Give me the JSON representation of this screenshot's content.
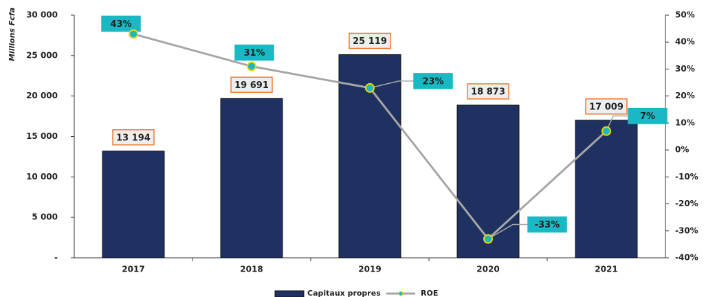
{
  "chart_data": {
    "type": "bar-line",
    "y_axis_label": "Millions Fcfa",
    "categories": [
      "2017",
      "2018",
      "2019",
      "2020",
      "2021"
    ],
    "series": [
      {
        "name": "Capitaux propres",
        "type": "bar",
        "color": "#1f3160",
        "values": [
          13194,
          19691,
          25119,
          18873,
          17009
        ],
        "value_labels": [
          "13 194",
          "19 691",
          "25 119",
          "18 873",
          "17 009"
        ]
      },
      {
        "name": "ROE",
        "type": "line",
        "axis": "y2",
        "color": "#a6a6a6",
        "values": [
          43,
          31,
          23,
          -33,
          7
        ],
        "value_labels": [
          "43%",
          "31%",
          "23%",
          "-33%",
          "7%"
        ]
      }
    ],
    "ylim": [
      0,
      30000
    ],
    "yticks": [
      {
        "value": 0,
        "label": "-"
      },
      {
        "value": 5000,
        "label": "5 000"
      },
      {
        "value": 10000,
        "label": "10 000"
      },
      {
        "value": 15000,
        "label": "15 000"
      },
      {
        "value": 20000,
        "label": "20 000"
      },
      {
        "value": 25000,
        "label": "25 000"
      },
      {
        "value": 30000,
        "label": "30 000"
      }
    ],
    "y2lim": [
      -40,
      50
    ],
    "y2ticks": [
      {
        "value": -40,
        "label": "-40%"
      },
      {
        "value": -30,
        "label": "-30%"
      },
      {
        "value": -20,
        "label": "-20%"
      },
      {
        "value": -10,
        "label": "-10%"
      },
      {
        "value": 0,
        "label": "0%"
      },
      {
        "value": 10,
        "label": "10%"
      },
      {
        "value": 20,
        "label": "20%"
      },
      {
        "value": 30,
        "label": "30%"
      },
      {
        "value": 40,
        "label": "40%"
      },
      {
        "value": 50,
        "label": "50%"
      }
    ],
    "legend": "bottom"
  }
}
